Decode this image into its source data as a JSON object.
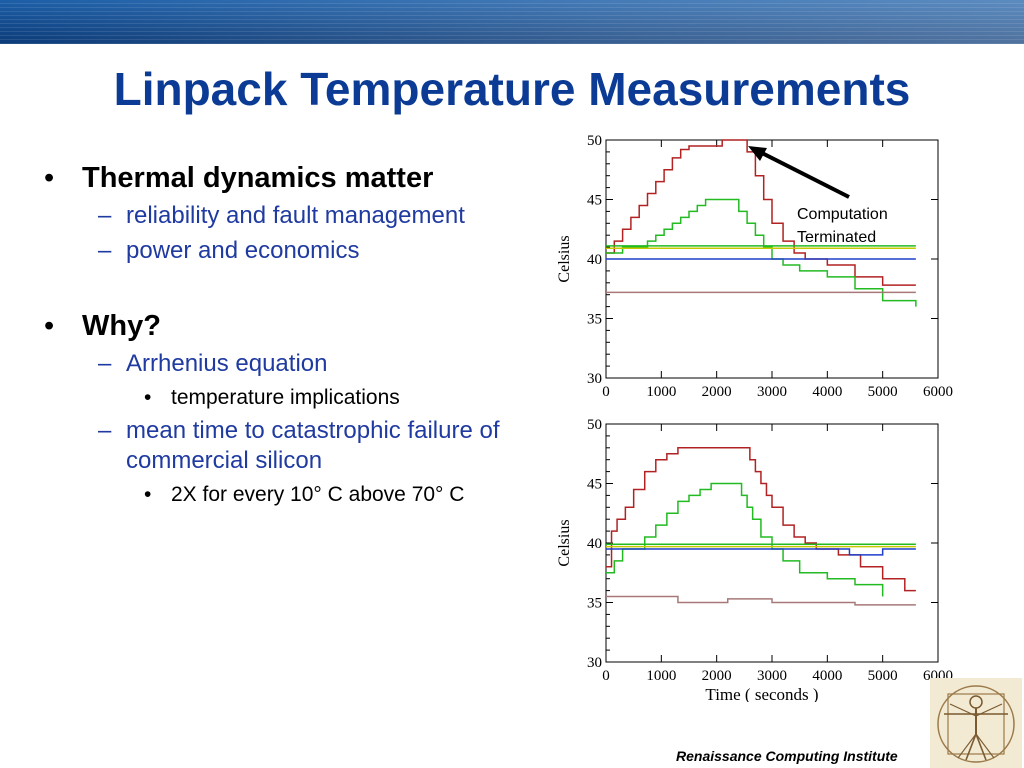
{
  "slide": {
    "title": "Linpack Temperature Measurements",
    "footer": "Renaissance Computing Institute",
    "logo_icon": "vitruvian-man-icon",
    "banner_color": "#174f97",
    "title_color": "#0b3b94"
  },
  "bullets": [
    {
      "text": "Thermal dynamics matter",
      "subs": [
        {
          "text": "reliability and fault management",
          "subs": []
        },
        {
          "text": "power and economics",
          "subs": []
        }
      ]
    },
    {
      "text": "Why?",
      "subs": [
        {
          "text": "Arrhenius equation",
          "subs": [
            {
              "text": "temperature implications"
            }
          ]
        },
        {
          "text": "mean time to catastrophic failure of commercial silicon",
          "subs": [
            {
              "text": "2X for every 10° C above 70° C"
            }
          ]
        }
      ]
    }
  ],
  "annotation": {
    "line1": "Computation",
    "line2": "Terminated"
  },
  "chart_data": [
    {
      "type": "line",
      "ylabel": "Celsius",
      "xlabel": "",
      "xlim": [
        0,
        6000
      ],
      "ylim": [
        30,
        50
      ],
      "xticks": [
        "0",
        "1000",
        "2000",
        "3000",
        "4000",
        "5000",
        "6000"
      ],
      "yticks": [
        "30",
        "35",
        "40",
        "45",
        "50"
      ],
      "series": [
        {
          "color": "#b22222",
          "x": [
            0,
            150,
            300,
            450,
            600,
            750,
            900,
            1050,
            1200,
            1350,
            1500,
            1650,
            1800,
            1950,
            2100,
            2250,
            2400,
            2550,
            2700,
            2850,
            3000,
            3200,
            3400,
            3600,
            4000,
            4500,
            5000,
            5600
          ],
          "y": [
            40.5,
            41.5,
            42.5,
            43.5,
            44.5,
            45.5,
            46.5,
            47.5,
            48.5,
            49.2,
            49.5,
            49.5,
            49.5,
            49.5,
            50,
            50,
            50,
            49,
            47,
            45,
            43,
            41.5,
            40.5,
            40,
            39.5,
            38.5,
            37.8,
            37.8
          ]
        },
        {
          "color": "#22bb22",
          "x": [
            0,
            300,
            600,
            750,
            900,
            1050,
            1200,
            1350,
            1500,
            1650,
            1800,
            2000,
            2250,
            2400,
            2550,
            2700,
            2850,
            3000,
            3200,
            3500,
            4000,
            4500,
            5000,
            5600
          ],
          "y": [
            40.5,
            41,
            41,
            41.5,
            42,
            42.5,
            43,
            43.5,
            44,
            44.5,
            45,
            45,
            45,
            44,
            43,
            42,
            41,
            40,
            39.5,
            39,
            38.5,
            37.5,
            36.5,
            36
          ]
        },
        {
          "color": "#c8c800",
          "x": [
            0,
            5600
          ],
          "y": [
            40.9,
            40.9
          ]
        },
        {
          "color": "#22bb22",
          "x": [
            0,
            5600
          ],
          "y": [
            41.1,
            41.1
          ]
        },
        {
          "color": "#1f3fcc",
          "x": [
            0,
            5600
          ],
          "y": [
            40,
            40
          ]
        },
        {
          "color": "#a87878",
          "x": [
            0,
            5600
          ],
          "y": [
            37.2,
            37.2
          ]
        }
      ]
    },
    {
      "type": "line",
      "ylabel": "Celsius",
      "xlabel": "Time ( seconds )",
      "xlim": [
        0,
        6000
      ],
      "ylim": [
        30,
        50
      ],
      "xticks": [
        "0",
        "1000",
        "2000",
        "3000",
        "4000",
        "5000",
        "6000"
      ],
      "yticks": [
        "30",
        "35",
        "40",
        "45",
        "50"
      ],
      "series": [
        {
          "color": "#b22222",
          "x": [
            0,
            100,
            200,
            350,
            500,
            700,
            900,
            1100,
            1300,
            1500,
            2000,
            2500,
            2600,
            2700,
            2800,
            2900,
            3000,
            3200,
            3400,
            3600,
            3800,
            4200,
            4600,
            5000,
            5400,
            5600
          ],
          "y": [
            38,
            41,
            42,
            43,
            44.5,
            46,
            47,
            47.5,
            48,
            48,
            48,
            48,
            47,
            46,
            45,
            44,
            43,
            41.5,
            40.5,
            40,
            39.5,
            39,
            38,
            37,
            36,
            36
          ]
        },
        {
          "color": "#22bb22",
          "x": [
            0,
            150,
            300,
            500,
            700,
            900,
            1100,
            1300,
            1500,
            1700,
            1900,
            2100,
            2300,
            2450,
            2550,
            2650,
            2800,
            3000,
            3200,
            3500,
            4000,
            4500,
            5000
          ],
          "y": [
            37.5,
            38.5,
            39.5,
            39.5,
            40.5,
            41.5,
            42.5,
            43.5,
            44,
            44.5,
            45,
            45,
            45,
            44,
            43,
            42,
            40.5,
            39.5,
            38.5,
            37.5,
            37,
            36.5,
            35.5
          ]
        },
        {
          "color": "#c8c800",
          "x": [
            0,
            5600
          ],
          "y": [
            39.7,
            39.7
          ]
        },
        {
          "color": "#22bb22",
          "x": [
            0,
            5600
          ],
          "y": [
            39.9,
            39.9
          ]
        },
        {
          "color": "#1f3fcc",
          "x": [
            0,
            4400,
            4400,
            5000,
            5000,
            5600
          ],
          "y": [
            39.5,
            39.5,
            39,
            39,
            39.5,
            39.5
          ]
        },
        {
          "color": "#a87878",
          "x": [
            0,
            1300,
            1300,
            2200,
            2200,
            3000,
            3000,
            4500,
            4500,
            5600
          ],
          "y": [
            35.5,
            35.5,
            35,
            35,
            35.3,
            35.3,
            35,
            35,
            34.8,
            34.8
          ]
        }
      ]
    }
  ]
}
